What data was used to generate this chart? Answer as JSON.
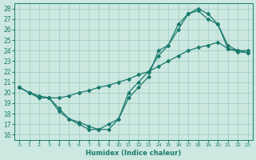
{
  "xlabel": "Humidex (Indice chaleur)",
  "bg_color": "#cce8e0",
  "grid_color": "#99ccc0",
  "line_color": "#1a7a6e",
  "xlim": [
    -0.5,
    23.5
  ],
  "ylim": [
    15.5,
    28.5
  ],
  "xticks": [
    0,
    1,
    2,
    3,
    4,
    5,
    6,
    7,
    8,
    9,
    10,
    11,
    12,
    13,
    14,
    15,
    16,
    17,
    18,
    19,
    20,
    21,
    22,
    23
  ],
  "yticks": [
    16,
    17,
    18,
    19,
    20,
    21,
    22,
    23,
    24,
    25,
    26,
    27,
    28
  ],
  "line1_x": [
    0,
    1,
    2,
    3,
    4,
    5,
    6,
    7,
    8,
    9,
    10,
    11,
    12,
    13,
    14,
    15,
    16,
    17,
    18,
    19,
    20,
    21,
    22,
    23
  ],
  "line1_y": [
    20.5,
    20.0,
    19.7,
    19.5,
    19.5,
    19.7,
    20.0,
    20.2,
    20.5,
    20.7,
    21.0,
    21.3,
    21.7,
    22.0,
    22.5,
    23.0,
    23.5,
    24.0,
    24.3,
    24.5,
    24.8,
    24.2,
    23.9,
    23.8
  ],
  "line2_x": [
    0,
    1,
    2,
    3,
    4,
    5,
    6,
    7,
    8,
    9,
    10,
    11,
    12,
    13,
    14,
    15,
    16,
    17,
    18,
    19,
    20,
    21,
    22,
    23
  ],
  "line2_y": [
    20.5,
    20.0,
    19.5,
    19.5,
    18.5,
    17.5,
    17.0,
    16.5,
    16.5,
    17.0,
    17.5,
    19.5,
    20.5,
    21.5,
    24.0,
    24.5,
    26.5,
    27.5,
    28.0,
    27.5,
    26.5,
    24.5,
    24.0,
    24.0
  ],
  "line3_x": [
    0,
    1,
    2,
    3,
    4,
    5,
    6,
    7,
    8,
    9,
    10,
    11,
    12,
    13,
    14,
    15,
    16,
    17,
    18,
    19,
    20,
    21,
    22,
    23
  ],
  "line3_y": [
    20.5,
    20.0,
    19.5,
    19.5,
    18.2,
    17.5,
    17.2,
    16.8,
    16.5,
    16.5,
    17.5,
    20.0,
    21.0,
    22.0,
    23.5,
    24.5,
    26.0,
    27.5,
    27.8,
    27.0,
    26.5,
    24.2,
    24.0,
    23.8
  ]
}
